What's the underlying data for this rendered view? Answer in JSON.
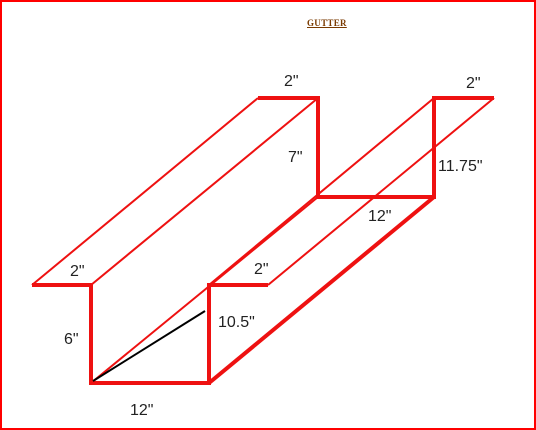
{
  "title": "GUTTER",
  "colors": {
    "border": "#ff0000",
    "outline": "#ee1111",
    "diagonal": "#000000",
    "title": "#7a3a00",
    "label": "#222222"
  },
  "dimensions": {
    "front_left_lip": "2\"",
    "front_left_height": "6\"",
    "front_bottom": "12\"",
    "front_inner_height": "10.5\"",
    "front_right_lip": "2\"",
    "back_left_lip": "2\"",
    "back_left_height": "7\"",
    "back_bottom": "12\"",
    "back_right_height": "11.75\"",
    "back_right_lip": "2\""
  }
}
